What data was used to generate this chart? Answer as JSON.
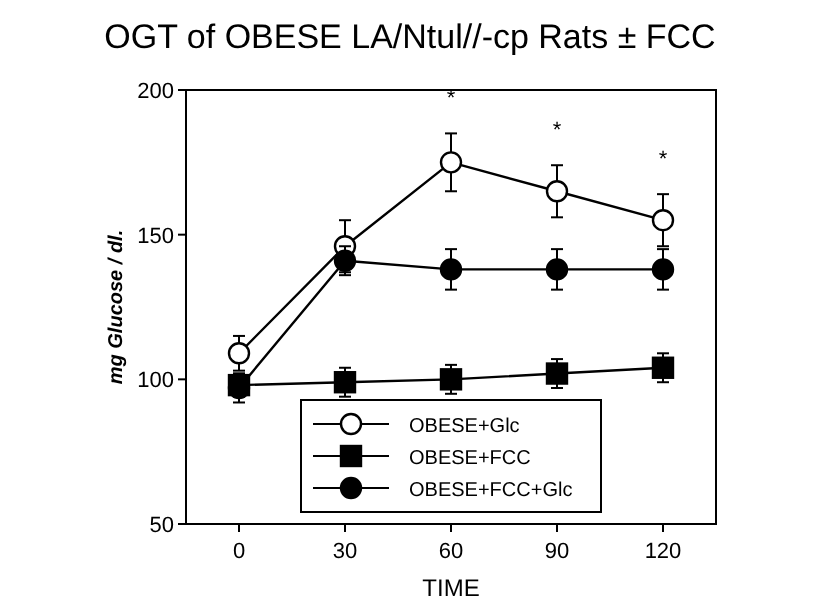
{
  "chart_data": {
    "type": "line",
    "title": "OGT of OBESE LA/Ntul//-cp  Rats ± FCC",
    "xlabel": "TIME",
    "ylabel": "mg Glucose / dl.",
    "x": [
      0,
      30,
      60,
      90,
      120
    ],
    "xlim": [
      -15,
      135
    ],
    "xticks": [
      0,
      30,
      60,
      90,
      120
    ],
    "ylim": [
      50,
      200
    ],
    "yticks": [
      50,
      100,
      150,
      200
    ],
    "legend": "bottom",
    "grid": false,
    "series": [
      {
        "name": "OBESE+Glc",
        "color": "#000000",
        "marker": "circle",
        "values": [
          109,
          146,
          175,
          165,
          155
        ],
        "errors": [
          6,
          9,
          10,
          9,
          9
        ]
      },
      {
        "name": "OBESE+FCC",
        "color": "#000000",
        "marker": "square",
        "values": [
          98,
          99,
          100,
          102,
          104
        ],
        "errors": [
          4,
          5,
          5,
          5,
          5
        ]
      },
      {
        "name": "OBESE+FCC+Glc",
        "color": "#000000",
        "marker": "circle",
        "values": [
          97,
          141,
          138,
          138,
          138
        ],
        "errors": [
          5,
          5,
          7,
          7,
          7
        ]
      }
    ],
    "annotations": [
      "*",
      "*",
      "*"
    ]
  }
}
